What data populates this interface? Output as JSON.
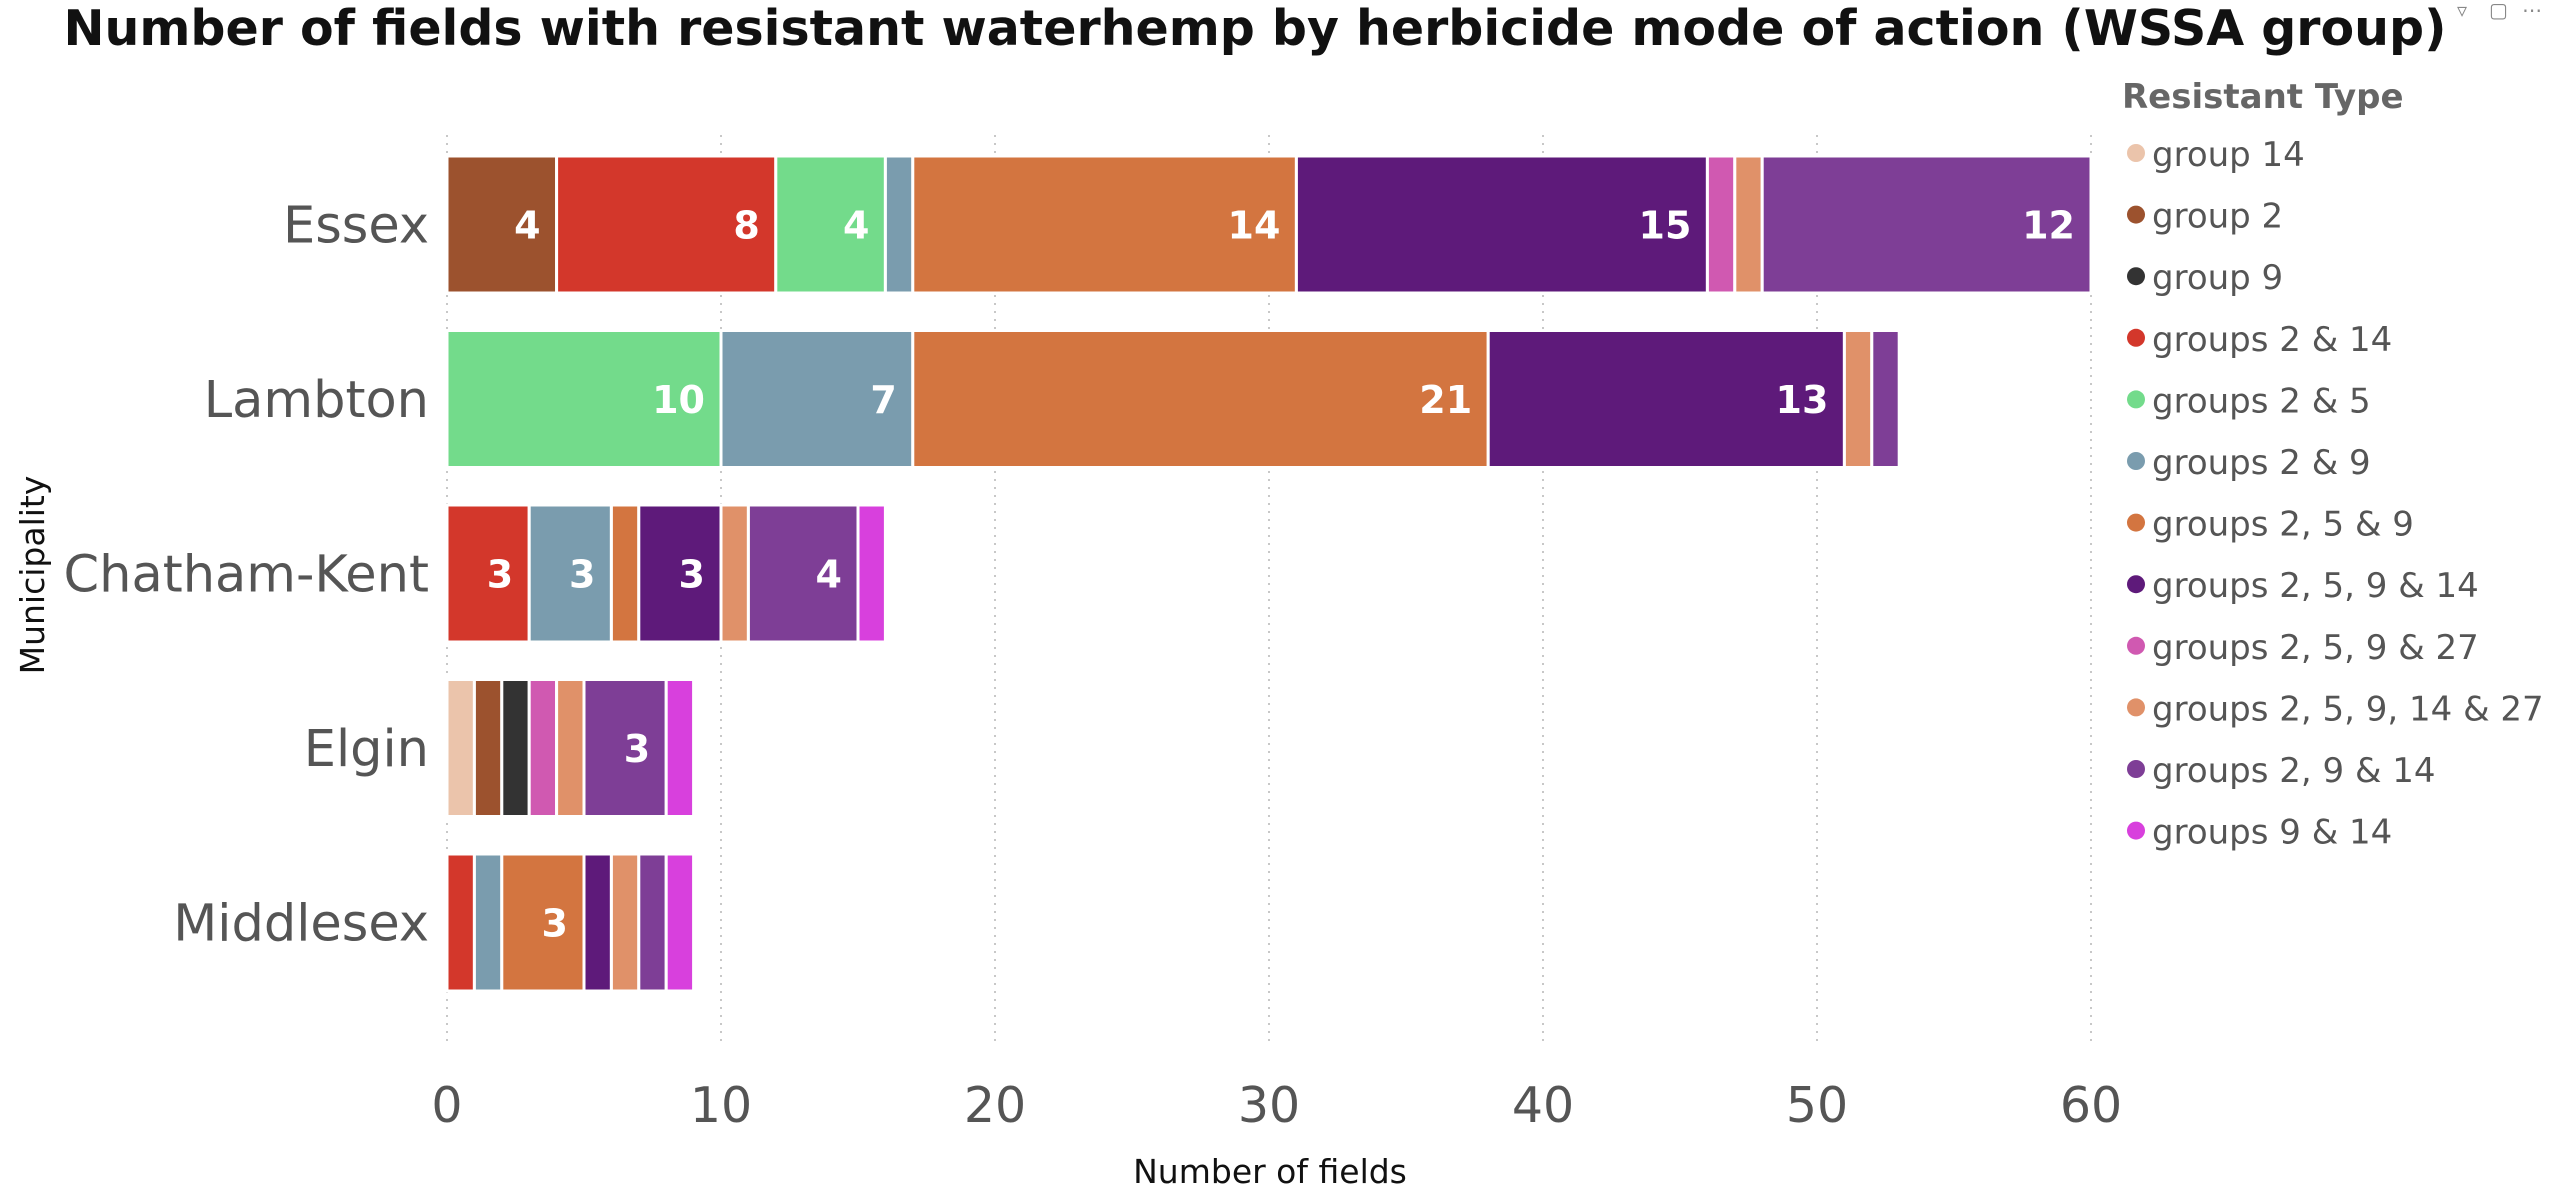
{
  "chart_data": {
    "type": "bar",
    "orientation": "horizontal",
    "stacked": true,
    "title": "Number of fields with resistant waterhemp by herbicide mode of action (WSSA group)",
    "xlabel": "Number of fields",
    "ylabel": "Municipality",
    "xlim": [
      0,
      60
    ],
    "xticks": [
      0,
      10,
      20,
      30,
      40,
      50,
      60
    ],
    "grid": "vertical-dotted",
    "legend_title": "Resistant Type",
    "legend_position": "right",
    "categories": [
      "Essex",
      "Lambton",
      "Chatham-Kent",
      "Elgin",
      "Middlesex"
    ],
    "series": [
      {
        "name": "group 14",
        "color": "#EBC4AB",
        "values": [
          0,
          0,
          0,
          1,
          0
        ]
      },
      {
        "name": "group 2",
        "color": "#9C522E",
        "values": [
          4,
          0,
          0,
          1,
          0
        ]
      },
      {
        "name": "group 9",
        "color": "#333333",
        "values": [
          0,
          0,
          0,
          1,
          0
        ]
      },
      {
        "name": "groups 2 & 14",
        "color": "#D3372B",
        "values": [
          8,
          0,
          3,
          0,
          1
        ]
      },
      {
        "name": "groups 2 & 5",
        "color": "#73DB8B",
        "values": [
          4,
          10,
          0,
          0,
          0
        ]
      },
      {
        "name": "groups 2 & 9",
        "color": "#7A9CAE",
        "values": [
          1,
          7,
          3,
          0,
          1
        ]
      },
      {
        "name": "groups 2, 5 & 9",
        "color": "#D37540",
        "values": [
          14,
          21,
          1,
          0,
          3
        ]
      },
      {
        "name": "groups 2, 5, 9 & 14",
        "color": "#5E1A7A",
        "values": [
          15,
          13,
          3,
          0,
          1
        ]
      },
      {
        "name": "groups 2, 5, 9 & 27",
        "color": "#D059B1",
        "values": [
          1,
          0,
          0,
          1,
          0
        ]
      },
      {
        "name": "groups 2, 5, 9, 14 & 27",
        "color": "#E09169",
        "values": [
          1,
          1,
          1,
          1,
          1
        ]
      },
      {
        "name": "groups 2, 9 & 14",
        "color": "#7E3E96",
        "values": [
          12,
          1,
          4,
          3,
          1
        ]
      },
      {
        "name": "groups 9 & 14",
        "color": "#D840DD",
        "values": [
          0,
          0,
          1,
          1,
          1
        ]
      }
    ]
  }
}
